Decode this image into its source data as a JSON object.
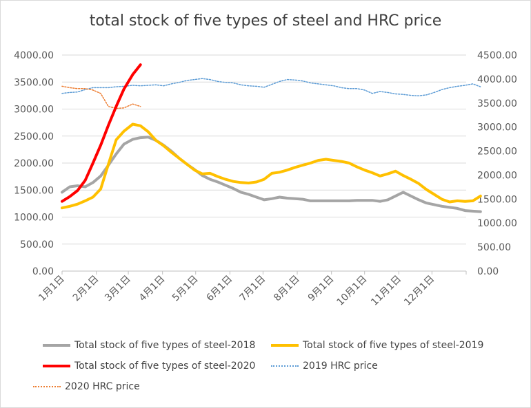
{
  "chart_data": {
    "type": "line",
    "title": "total stock of five types of steel and HRC price",
    "x_tick_labels": [
      "1月1日",
      "2月1日",
      "3月1日",
      "4月1日",
      "5月1日",
      "6月1日",
      "7月1日",
      "8月1日",
      "9月1日",
      "10月1日",
      "11月1日",
      "12月1日"
    ],
    "y_left": {
      "range": [
        0,
        4000
      ],
      "ticks": [
        "0.00",
        "500.00",
        "1000.00",
        "1500.00",
        "2000.00",
        "2500.00",
        "3000.00",
        "3500.00",
        "4000.00"
      ]
    },
    "y_right": {
      "range": [
        0,
        4500
      ],
      "ticks": [
        "0.00",
        "500.00",
        "1000.00",
        "1500.00",
        "2000.00",
        "2500.00",
        "3000.00",
        "3500.00",
        "4000.00",
        "4500.00"
      ]
    },
    "grid": true,
    "legend_position": "bottom",
    "series": [
      {
        "name": "Total stock of five types of steel-2018",
        "axis": "left",
        "color": "#a5a5a5",
        "style": "solid",
        "points": [
          [
            "01-01",
            1460
          ],
          [
            "01-08",
            1560
          ],
          [
            "01-15",
            1580
          ],
          [
            "01-22",
            1560
          ],
          [
            "01-29",
            1640
          ],
          [
            "02-05",
            1760
          ],
          [
            "02-12",
            1960
          ],
          [
            "02-19",
            2170
          ],
          [
            "02-26",
            2350
          ],
          [
            "03-05",
            2440
          ],
          [
            "03-12",
            2470
          ],
          [
            "03-19",
            2480
          ],
          [
            "03-26",
            2420
          ],
          [
            "04-02",
            2330
          ],
          [
            "04-09",
            2220
          ],
          [
            "04-16",
            2090
          ],
          [
            "04-23",
            1980
          ],
          [
            "04-30",
            1880
          ],
          [
            "05-07",
            1770
          ],
          [
            "05-14",
            1700
          ],
          [
            "05-21",
            1650
          ],
          [
            "05-28",
            1590
          ],
          [
            "06-04",
            1530
          ],
          [
            "06-11",
            1460
          ],
          [
            "06-18",
            1420
          ],
          [
            "06-25",
            1370
          ],
          [
            "07-02",
            1320
          ],
          [
            "07-09",
            1340
          ],
          [
            "07-16",
            1370
          ],
          [
            "07-23",
            1350
          ],
          [
            "07-30",
            1340
          ],
          [
            "08-06",
            1330
          ],
          [
            "08-13",
            1300
          ],
          [
            "08-20",
            1300
          ],
          [
            "08-27",
            1300
          ],
          [
            "09-03",
            1300
          ],
          [
            "09-10",
            1300
          ],
          [
            "09-17",
            1300
          ],
          [
            "09-24",
            1310
          ],
          [
            "10-01",
            1310
          ],
          [
            "10-08",
            1310
          ],
          [
            "10-15",
            1290
          ],
          [
            "10-22",
            1320
          ],
          [
            "10-29",
            1390
          ],
          [
            "11-05",
            1460
          ],
          [
            "11-12",
            1390
          ],
          [
            "11-19",
            1320
          ],
          [
            "11-26",
            1260
          ],
          [
            "12-03",
            1230
          ],
          [
            "12-10",
            1200
          ],
          [
            "12-17",
            1180
          ],
          [
            "12-24",
            1160
          ],
          [
            "12-31",
            1120
          ],
          [
            "01-07",
            1110
          ],
          [
            "01-14",
            1100
          ]
        ]
      },
      {
        "name": "Total stock of five types of steel-2019",
        "axis": "left",
        "color": "#ffc000",
        "style": "solid",
        "points": [
          [
            "01-01",
            1170
          ],
          [
            "01-08",
            1200
          ],
          [
            "01-15",
            1240
          ],
          [
            "01-22",
            1300
          ],
          [
            "01-29",
            1370
          ],
          [
            "02-05",
            1520
          ],
          [
            "02-12",
            1980
          ],
          [
            "02-19",
            2430
          ],
          [
            "02-26",
            2590
          ],
          [
            "03-05",
            2720
          ],
          [
            "03-12",
            2690
          ],
          [
            "03-19",
            2580
          ],
          [
            "03-26",
            2420
          ],
          [
            "04-02",
            2320
          ],
          [
            "04-09",
            2200
          ],
          [
            "04-16",
            2090
          ],
          [
            "04-23",
            1980
          ],
          [
            "04-30",
            1870
          ],
          [
            "05-07",
            1800
          ],
          [
            "05-14",
            1810
          ],
          [
            "05-21",
            1750
          ],
          [
            "05-28",
            1700
          ],
          [
            "06-04",
            1660
          ],
          [
            "06-11",
            1640
          ],
          [
            "06-18",
            1630
          ],
          [
            "06-25",
            1650
          ],
          [
            "07-02",
            1700
          ],
          [
            "07-09",
            1810
          ],
          [
            "07-16",
            1830
          ],
          [
            "07-23",
            1870
          ],
          [
            "07-30",
            1920
          ],
          [
            "08-06",
            1960
          ],
          [
            "08-13",
            2000
          ],
          [
            "08-20",
            2050
          ],
          [
            "08-27",
            2070
          ],
          [
            "09-03",
            2050
          ],
          [
            "09-10",
            2030
          ],
          [
            "09-17",
            2000
          ],
          [
            "09-24",
            1930
          ],
          [
            "10-01",
            1870
          ],
          [
            "10-08",
            1820
          ],
          [
            "10-15",
            1760
          ],
          [
            "10-22",
            1800
          ],
          [
            "10-29",
            1850
          ],
          [
            "11-05",
            1770
          ],
          [
            "11-12",
            1700
          ],
          [
            "11-19",
            1620
          ],
          [
            "11-26",
            1510
          ],
          [
            "12-03",
            1420
          ],
          [
            "12-10",
            1330
          ],
          [
            "12-17",
            1280
          ],
          [
            "12-24",
            1300
          ],
          [
            "12-31",
            1290
          ],
          [
            "01-07",
            1300
          ],
          [
            "01-14",
            1390
          ]
        ]
      },
      {
        "name": "Total stock of five types of steel-2020",
        "axis": "left",
        "color": "#ff0000",
        "style": "solid",
        "points": [
          [
            "01-01",
            1290
          ],
          [
            "01-08",
            1380
          ],
          [
            "01-15",
            1490
          ],
          [
            "01-22",
            1680
          ],
          [
            "01-29",
            2000
          ],
          [
            "02-05",
            2330
          ],
          [
            "02-12",
            2700
          ],
          [
            "02-19",
            3050
          ],
          [
            "02-26",
            3370
          ],
          [
            "03-05",
            3640
          ],
          [
            "03-12",
            3820
          ]
        ]
      },
      {
        "name": "2019 HRC price",
        "axis": "right",
        "color": "#5b9bd5",
        "style": "dotted",
        "points": [
          [
            "01-01",
            3700
          ],
          [
            "01-08",
            3720
          ],
          [
            "01-15",
            3730
          ],
          [
            "01-22",
            3780
          ],
          [
            "01-29",
            3820
          ],
          [
            "02-05",
            3820
          ],
          [
            "02-12",
            3820
          ],
          [
            "02-19",
            3840
          ],
          [
            "02-26",
            3850
          ],
          [
            "03-05",
            3870
          ],
          [
            "03-12",
            3860
          ],
          [
            "03-19",
            3870
          ],
          [
            "03-26",
            3880
          ],
          [
            "04-02",
            3860
          ],
          [
            "04-09",
            3900
          ],
          [
            "04-16",
            3930
          ],
          [
            "04-23",
            3970
          ],
          [
            "04-30",
            3990
          ],
          [
            "05-07",
            4010
          ],
          [
            "05-14",
            3990
          ],
          [
            "05-21",
            3950
          ],
          [
            "05-28",
            3930
          ],
          [
            "06-04",
            3920
          ],
          [
            "06-11",
            3880
          ],
          [
            "06-18",
            3860
          ],
          [
            "06-25",
            3850
          ],
          [
            "07-02",
            3830
          ],
          [
            "07-09",
            3890
          ],
          [
            "07-16",
            3950
          ],
          [
            "07-23",
            3990
          ],
          [
            "07-30",
            3980
          ],
          [
            "08-06",
            3960
          ],
          [
            "08-13",
            3920
          ],
          [
            "08-20",
            3900
          ],
          [
            "08-27",
            3880
          ],
          [
            "09-03",
            3860
          ],
          [
            "09-10",
            3820
          ],
          [
            "09-17",
            3800
          ],
          [
            "09-24",
            3800
          ],
          [
            "10-01",
            3770
          ],
          [
            "10-08",
            3700
          ],
          [
            "10-15",
            3740
          ],
          [
            "10-22",
            3720
          ],
          [
            "10-29",
            3690
          ],
          [
            "11-05",
            3680
          ],
          [
            "11-12",
            3660
          ],
          [
            "11-19",
            3650
          ],
          [
            "11-26",
            3670
          ],
          [
            "12-03",
            3720
          ],
          [
            "12-10",
            3780
          ],
          [
            "12-17",
            3820
          ],
          [
            "12-24",
            3850
          ],
          [
            "12-31",
            3870
          ],
          [
            "01-07",
            3900
          ],
          [
            "01-14",
            3840
          ]
        ]
      },
      {
        "name": "2020 HRC price",
        "axis": "right",
        "color": "#ed7d31",
        "style": "dotted",
        "points": [
          [
            "01-01",
            3850
          ],
          [
            "01-08",
            3820
          ],
          [
            "01-15",
            3800
          ],
          [
            "01-22",
            3800
          ],
          [
            "01-29",
            3770
          ],
          [
            "02-05",
            3700
          ],
          [
            "02-12",
            3430
          ],
          [
            "02-19",
            3390
          ],
          [
            "02-26",
            3400
          ],
          [
            "03-05",
            3480
          ],
          [
            "03-12",
            3430
          ]
        ]
      }
    ]
  }
}
